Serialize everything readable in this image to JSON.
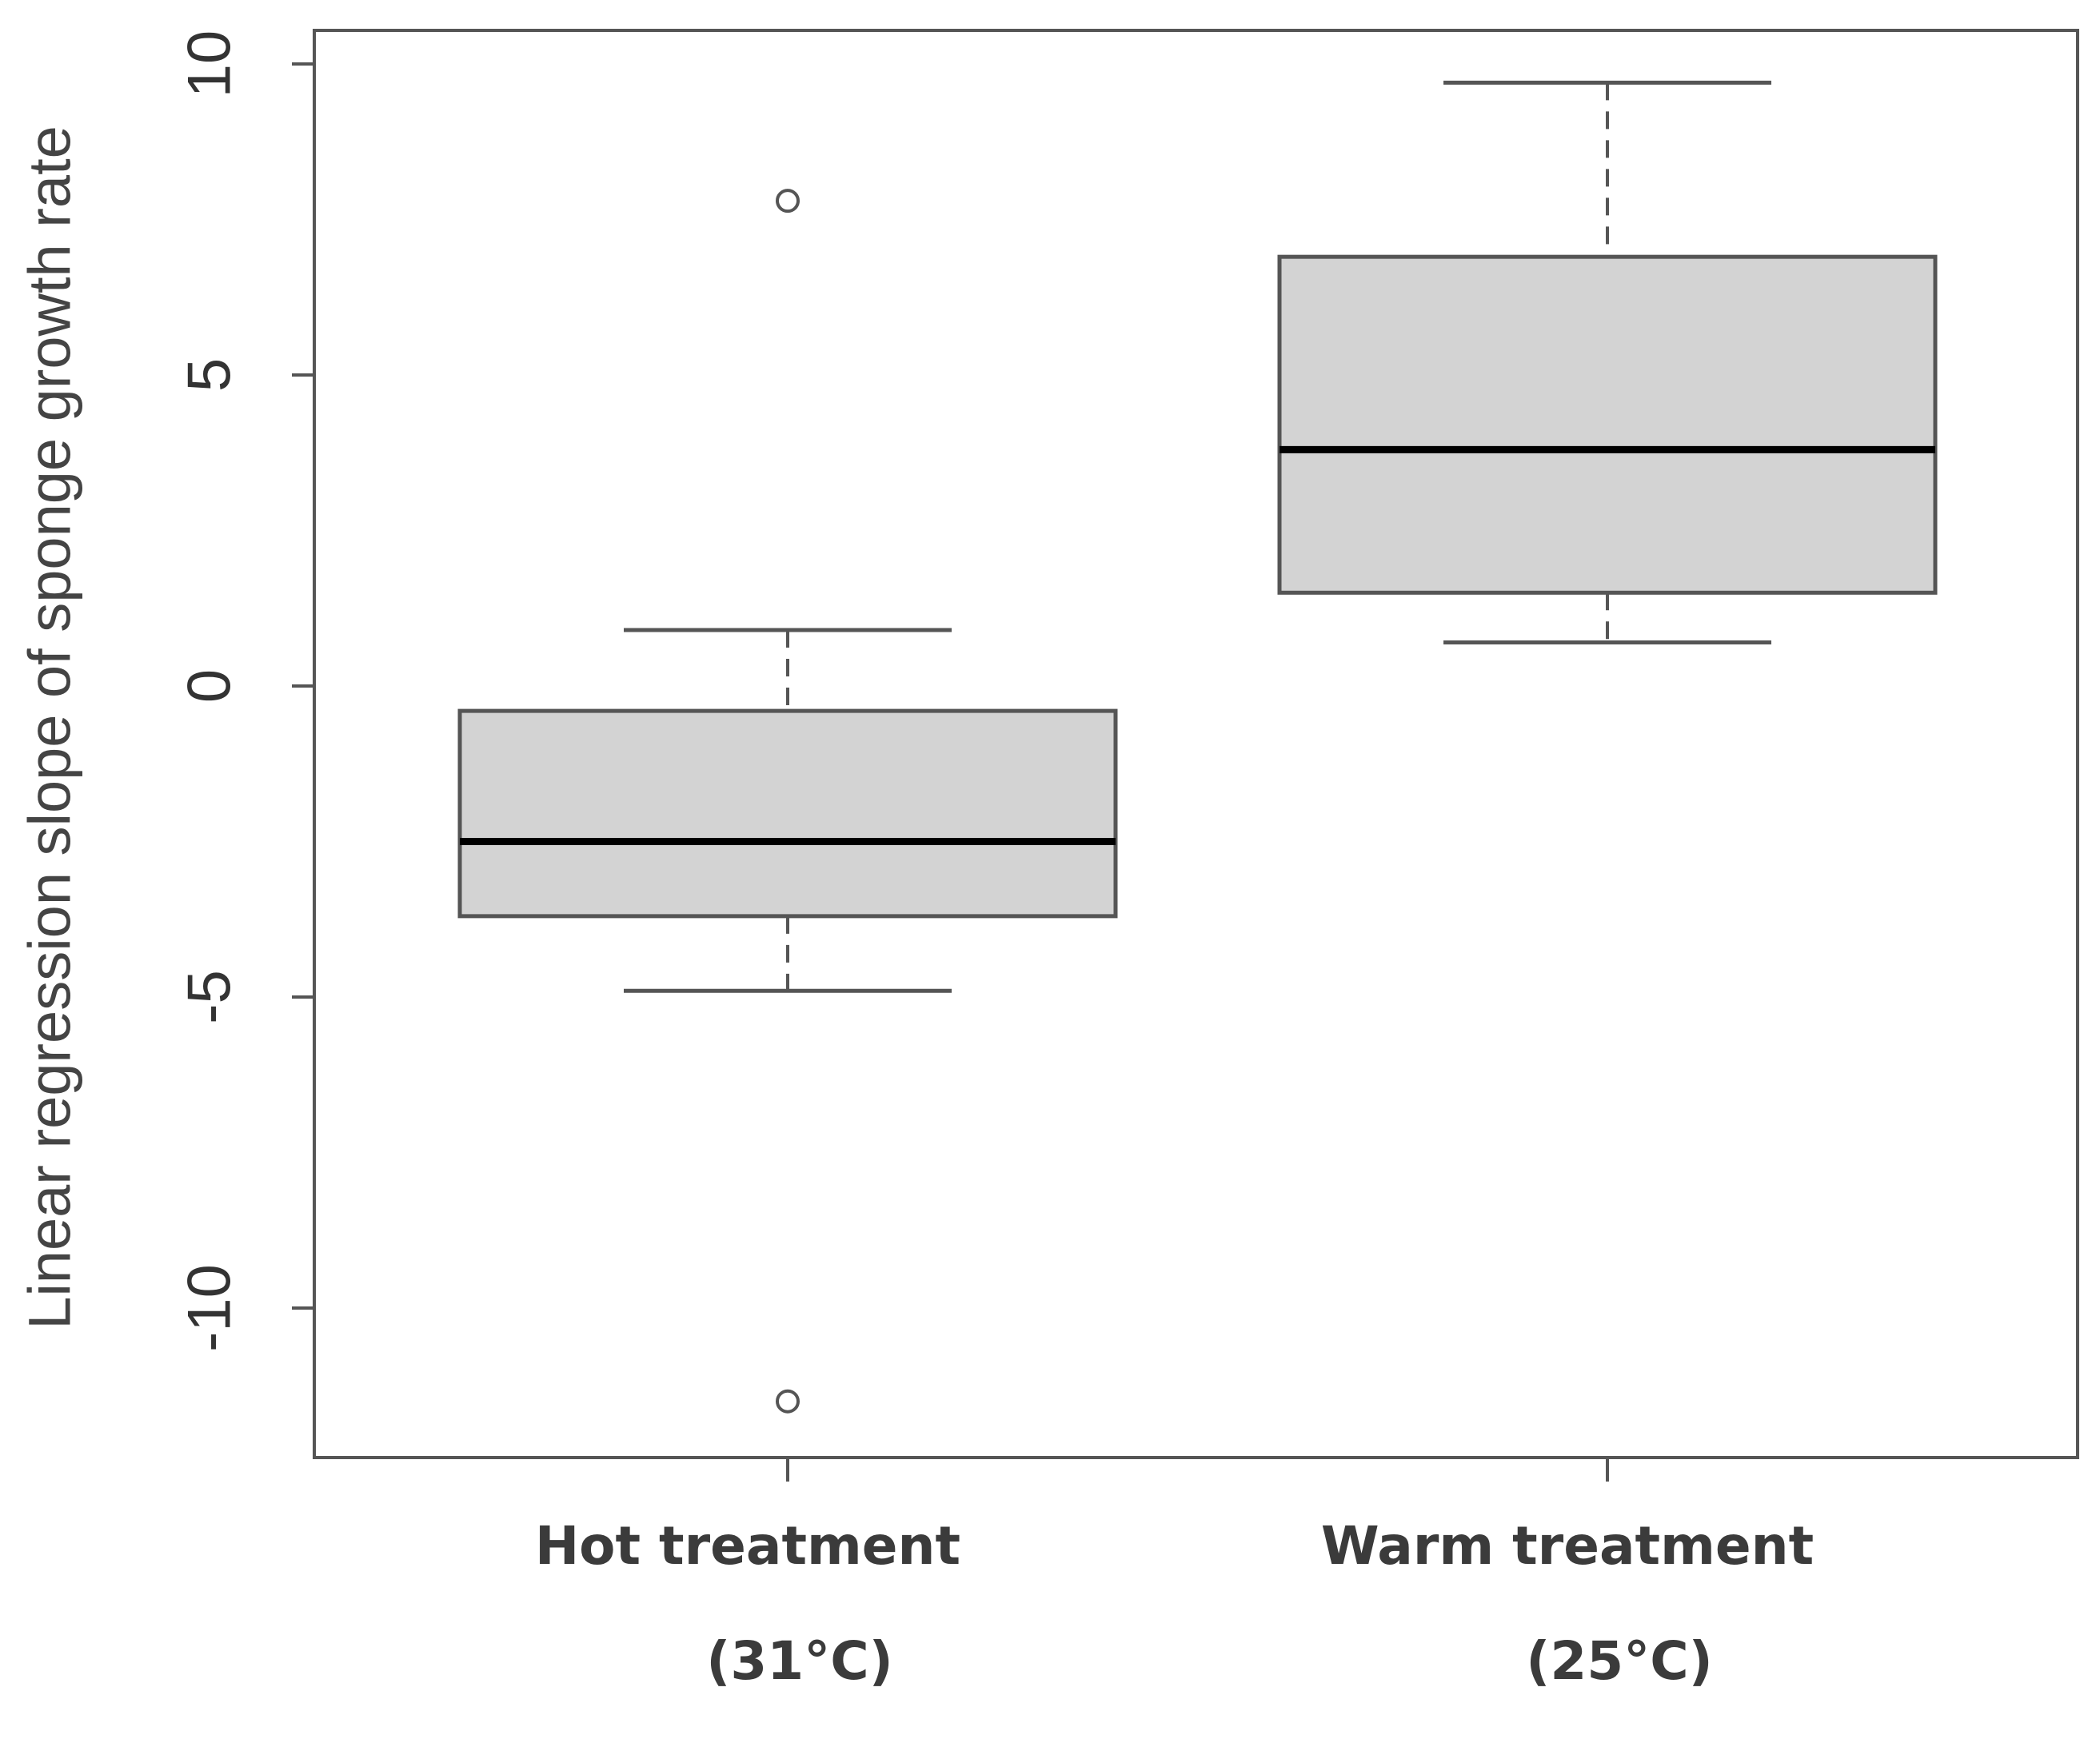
{
  "chart_data": {
    "type": "box",
    "title": "",
    "xlabel": "",
    "ylabel": "Linear regression slope of sponge growth rate",
    "ylim": [
      -12.2,
      10.5
    ],
    "yticks": [
      10,
      5,
      0,
      -5,
      -10
    ],
    "ytick_labels": [
      "10",
      "5",
      "0",
      "-5",
      "-10"
    ],
    "categories": [
      {
        "line1": "Hot treatment",
        "line2": "(31°C)"
      },
      {
        "line1": "Warm treatment",
        "line2": "(25°C)"
      }
    ],
    "boxes": [
      {
        "name": "Hot treatment (31°C)",
        "whisker_low": -4.9,
        "q1": -3.7,
        "median": -2.5,
        "q3": -0.4,
        "whisker_high": 0.9,
        "outliers": [
          7.8,
          -11.5
        ]
      },
      {
        "name": "Warm treatment (25°C)",
        "whisker_low": 0.7,
        "q1": 1.5,
        "median": 3.8,
        "q3": 6.9,
        "whisker_high": 9.7,
        "outliers": []
      }
    ],
    "colors": {
      "box_fill": "#d3d3d3",
      "box_stroke": "#555555",
      "median": "#000000",
      "whisker": "#555555",
      "frame": "#555555"
    }
  }
}
